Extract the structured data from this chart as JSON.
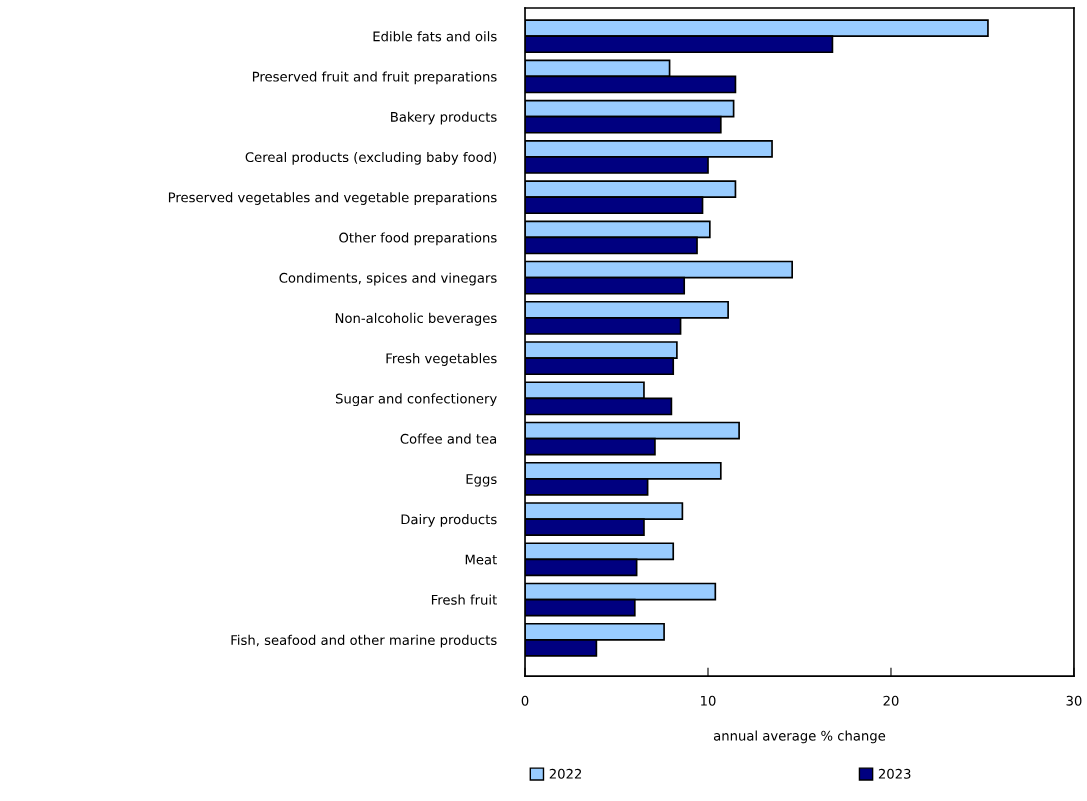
{
  "chart_data": {
    "type": "bar",
    "orientation": "horizontal",
    "xlabel": "annual average % change",
    "categories": [
      "Edible fats and oils",
      "Preserved fruit and fruit preparations",
      "Bakery products",
      "Cereal products (excluding baby food)",
      "Preserved vegetables and vegetable preparations",
      "Other food preparations",
      "Condiments, spices and vinegars",
      "Non-alcoholic beverages",
      "Fresh vegetables",
      "Sugar and confectionery",
      "Coffee and tea",
      "Eggs",
      "Dairy products",
      "Meat",
      "Fresh fruit",
      "Fish, seafood and other marine products"
    ],
    "series": [
      {
        "name": "2022",
        "color": "#99ccff",
        "values": [
          25.3,
          7.9,
          11.4,
          13.5,
          11.5,
          10.1,
          14.6,
          11.1,
          8.3,
          6.5,
          11.7,
          10.7,
          8.6,
          8.1,
          10.4,
          7.6
        ]
      },
      {
        "name": "2023",
        "color": "#000080",
        "values": [
          16.8,
          11.5,
          10.7,
          10.0,
          9.7,
          9.4,
          8.7,
          8.5,
          8.1,
          8.0,
          7.1,
          6.7,
          6.5,
          6.1,
          6.0,
          3.9
        ]
      }
    ],
    "xlim": [
      0,
      30
    ],
    "xticks": [
      0,
      10,
      20,
      30
    ],
    "grid": false,
    "legend": "bottom"
  }
}
